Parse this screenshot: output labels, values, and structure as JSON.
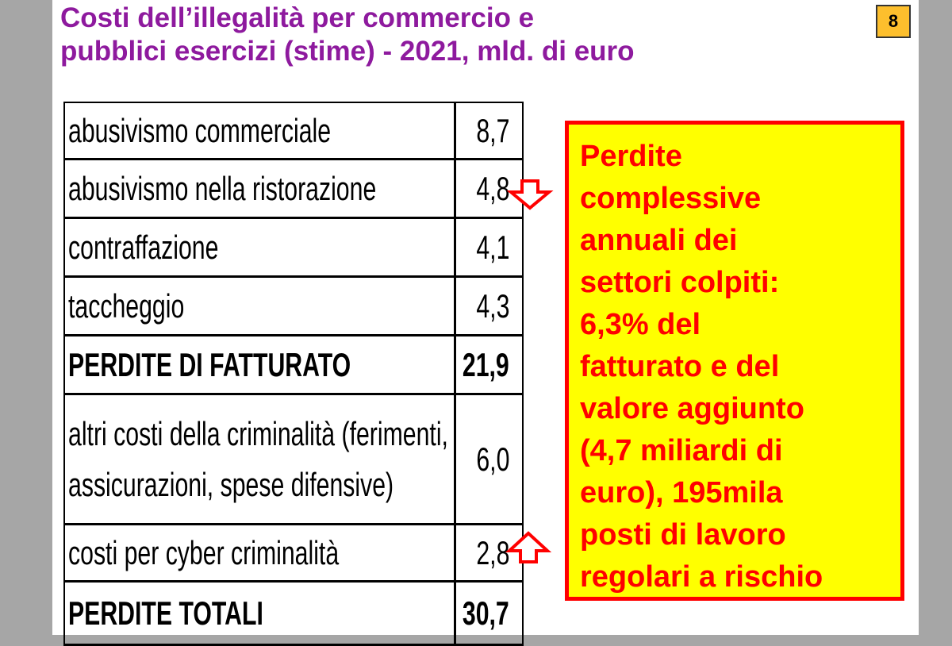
{
  "slide_number": "8",
  "title": [
    "Costi dell’illegalità per commercio e",
    "pubblici esercizi (stime) - 2021, mld. di euro"
  ],
  "table": {
    "rows": [
      [
        "abusivismo commerciale",
        "8,7"
      ],
      [
        "abusivismo nella ristorazione",
        "4,8"
      ],
      [
        "contraffazione",
        "4,1"
      ],
      [
        "taccheggio",
        "4,3"
      ],
      [
        "PERDITE DI FATTURATO",
        "21,9"
      ],
      [
        "altri costi della criminalità (ferimenti, assicurazioni, spese difensive)",
        "6,0"
      ],
      [
        "costi per cyber criminalità",
        "2,8"
      ],
      [
        "PERDITE TOTALI",
        "30,7"
      ]
    ]
  },
  "callout": [
    "Perdite",
    "complessive",
    "annuali dei",
    "settori colpiti:",
    "6,3% del",
    "fatturato e del",
    "valore aggiunto",
    "(4,7 miliardi di",
    "euro), 195mila",
    "posti di lavoro",
    "regolari a rischio"
  ]
}
